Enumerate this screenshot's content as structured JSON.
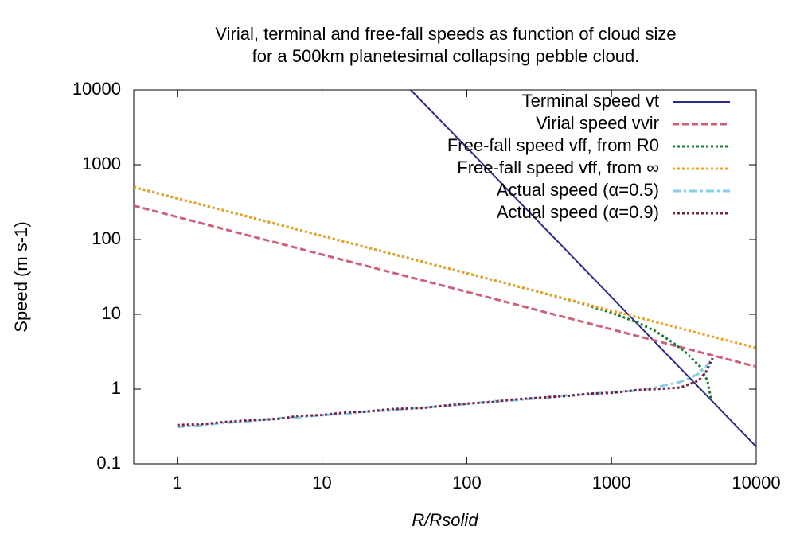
{
  "chart_data": {
    "type": "line",
    "title": [
      "Virial, terminal and free-fall speeds as function of cloud size",
      "for a 500km planetesimal collapsing pebble cloud."
    ],
    "xlabel": "R/Rsolid",
    "ylabel": "Speed (m s-1)",
    "xscale": "log",
    "yscale": "log",
    "xlim": [
      0.5,
      10000
    ],
    "ylim": [
      0.1,
      10000
    ],
    "xticks": [
      1,
      10,
      100,
      1000,
      10000
    ],
    "yticks": [
      0.1,
      1,
      10,
      100,
      1000,
      10000
    ],
    "legend": "upper right",
    "series": [
      {
        "name": "Terminal speed vt",
        "color": "#2e2a8a",
        "linestyle": "solid",
        "x": [
          41,
          100,
          1000,
          10000
        ],
        "values": [
          10000,
          1700,
          17,
          0.17
        ]
      },
      {
        "name": "Virial speed vvir",
        "color": "#d0607a",
        "linestyle": "dashed",
        "x": [
          0.5,
          1,
          10,
          100,
          1000,
          10000
        ],
        "values": [
          283,
          200,
          63,
          20,
          6.3,
          2
        ]
      },
      {
        "name": "Free-fall speed vff, from R0",
        "color": "#1d7a2d",
        "linestyle": "dotted",
        "x": [
          0.5,
          1,
          10,
          100,
          300,
          600,
          1000,
          1500,
          2000,
          2600,
          3200,
          4100,
          4600,
          4900
        ],
        "values": [
          502,
          355,
          112,
          35.5,
          20.4,
          14.3,
          10.5,
          7.8,
          6.0,
          4.3,
          3.2,
          2.0,
          1.3,
          0.7
        ]
      },
      {
        "name": "Free-fall speed vff, from ∞",
        "color": "#f0a020",
        "linestyle": "dotted",
        "x": [
          0.5,
          1,
          10,
          100,
          1000,
          10000
        ],
        "values": [
          502,
          355,
          112,
          35.5,
          11.2,
          3.55
        ]
      },
      {
        "name": "Actual speed (α=0.5)",
        "color": "#87ceeb",
        "linestyle": "dashdot",
        "x": [
          1,
          1.5,
          2,
          3,
          5,
          7,
          10,
          15,
          20,
          30,
          50,
          70,
          100,
          150,
          200,
          300,
          500,
          700,
          1000,
          1500,
          2000,
          3000,
          4000,
          4500,
          5000
        ],
        "values": [
          0.31,
          0.33,
          0.35,
          0.37,
          0.41,
          0.42,
          0.45,
          0.47,
          0.5,
          0.52,
          0.57,
          0.59,
          0.63,
          0.69,
          0.7,
          0.75,
          0.83,
          0.85,
          0.92,
          0.95,
          1.05,
          1.25,
          1.6,
          2.0,
          2.6
        ]
      },
      {
        "name": "Actual speed (α=0.9)",
        "color": "#7a1f45",
        "linestyle": "dotted",
        "x": [
          1,
          1.5,
          2,
          3,
          5,
          7,
          10,
          15,
          20,
          30,
          50,
          70,
          100,
          150,
          200,
          300,
          500,
          700,
          1000,
          1500,
          2000,
          3000,
          4000,
          4500,
          5000
        ],
        "values": [
          0.33,
          0.34,
          0.36,
          0.38,
          0.4,
          0.44,
          0.45,
          0.49,
          0.5,
          0.54,
          0.56,
          0.6,
          0.64,
          0.67,
          0.72,
          0.76,
          0.81,
          0.87,
          0.89,
          0.97,
          1.0,
          1.05,
          1.3,
          1.7,
          2.6
        ]
      }
    ]
  }
}
